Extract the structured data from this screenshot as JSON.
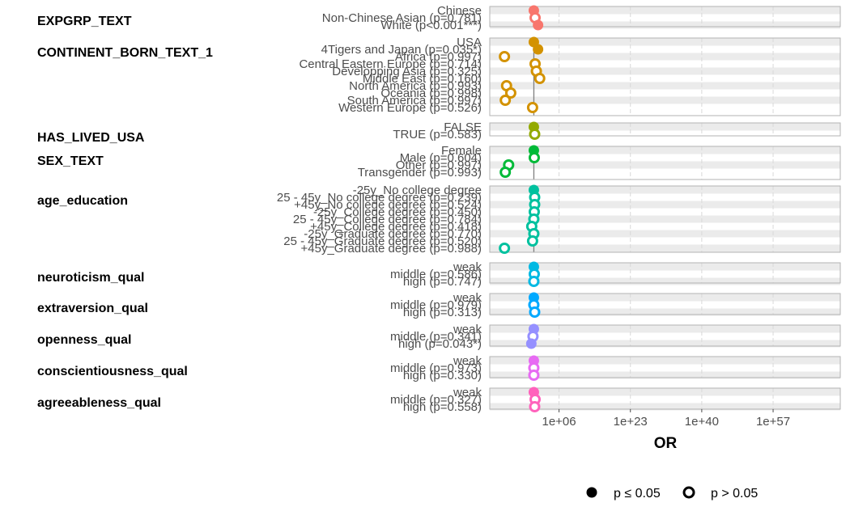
{
  "chart_data": {
    "type": "scatter",
    "subtype": "forest-plot",
    "xlabel": "OR",
    "x_scale": "log10",
    "xlim_log10": [
      -10.5,
      73
    ],
    "x_ticks": [
      {
        "label": "1e+06",
        "log10": 6
      },
      {
        "label": "1e+23",
        "log10": 23
      },
      {
        "label": "1e+40",
        "log10": 40
      },
      {
        "label": "1e+57",
        "log10": 57
      }
    ],
    "reference_line_log10": 0,
    "legend": {
      "position": "bottom",
      "items": [
        {
          "label": "p ≤ 0.05",
          "shape": "filled"
        },
        {
          "label": "p > 0.05",
          "shape": "open"
        }
      ]
    },
    "groups": [
      {
        "name": "EXPGRP_TEXT",
        "color": "#F8766D",
        "levels": [
          {
            "label": "Chinese",
            "log10_or": 0,
            "reference": true
          },
          {
            "label": "Non-Chinese Asian (p=0.781)",
            "log10_or": 0.3,
            "significant": false
          },
          {
            "label": "White (p<0.001***)",
            "log10_or": 1,
            "significant": true
          }
        ]
      },
      {
        "name": "CONTINENT_BORN_TEXT_1",
        "color": "#D39200",
        "levels": [
          {
            "label": "USA",
            "log10_or": 0,
            "reference": true
          },
          {
            "label": "4Tigers and Japan (p=0.035*)",
            "log10_or": 1,
            "significant": true
          },
          {
            "label": "Africa (p=0.997)",
            "log10_or": -7,
            "significant": false
          },
          {
            "label": "Central Eastern Europe (p=0.714)",
            "log10_or": 0.3,
            "significant": false
          },
          {
            "label": "Developping Asia (p=0.325)",
            "log10_or": 0.6,
            "significant": false
          },
          {
            "label": "Middle East (p=0.160)",
            "log10_or": 1.4,
            "significant": false
          },
          {
            "label": "North America (p=0.993)",
            "log10_or": -6.5,
            "significant": false
          },
          {
            "label": "Oceania (p=0.998)",
            "log10_or": -5.5,
            "significant": false
          },
          {
            "label": "South America (p=0.997)",
            "log10_or": -6.8,
            "significant": false
          },
          {
            "label": "Western Europe (p=0.526)",
            "log10_or": -0.3,
            "significant": false
          }
        ]
      },
      {
        "name": "HAS_LIVED_USA",
        "color": "#93AA00",
        "levels": [
          {
            "label": "FALSE",
            "log10_or": 0,
            "reference": true
          },
          {
            "label": "TRUE (p=0.583)",
            "log10_or": 0.2,
            "significant": false
          }
        ]
      },
      {
        "name": "SEX_TEXT",
        "color": "#00BA38",
        "levels": [
          {
            "label": "Female",
            "log10_or": 0,
            "reference": true
          },
          {
            "label": "Male (p=0.604)",
            "log10_or": 0.1,
            "significant": false
          },
          {
            "label": "Other (p=0.997)",
            "log10_or": -6,
            "significant": false
          },
          {
            "label": "Transgender (p=0.993)",
            "log10_or": -6.8,
            "significant": false
          }
        ]
      },
      {
        "name": "age_education",
        "color": "#00C19F",
        "levels": [
          {
            "label": "-25y_No college degree",
            "log10_or": 0,
            "reference": true
          },
          {
            "label": "25 - 45y_No college degree (p=0.239)",
            "log10_or": 0.2,
            "significant": false
          },
          {
            "label": "+45y_No college degree (p=0.524)",
            "log10_or": 0.2,
            "significant": false
          },
          {
            "label": "-25y_College degree (p=0.450)",
            "log10_or": 0.1,
            "significant": false
          },
          {
            "label": "25 - 45y_College degree (p=0.784)",
            "log10_or": 0,
            "significant": false
          },
          {
            "label": "+45y_College degree (p=0.418)",
            "log10_or": -0.5,
            "significant": false
          },
          {
            "label": "-25y_Graduate degree (p=0.770)",
            "log10_or": 0,
            "significant": false
          },
          {
            "label": "25 - 45y_Graduate degree (p=0.520)",
            "log10_or": -0.3,
            "significant": false
          },
          {
            "label": "+45y_Graduate degree (p=0.988)",
            "log10_or": -7,
            "significant": false
          }
        ]
      },
      {
        "name": "neuroticism_qual",
        "color": "#00B9E3",
        "levels": [
          {
            "label": "weak",
            "log10_or": 0,
            "reference": true
          },
          {
            "label": "middle (p=0.586)",
            "log10_or": 0.1,
            "significant": false
          },
          {
            "label": "high (p=0.747)",
            "log10_or": 0,
            "significant": false
          }
        ]
      },
      {
        "name": "extraversion_qual",
        "color": "#00A9FF",
        "levels": [
          {
            "label": "weak",
            "log10_or": 0,
            "reference": true
          },
          {
            "label": "middle (p=0.979)",
            "log10_or": 0,
            "significant": false
          },
          {
            "label": "high (p=0.313)",
            "log10_or": 0.2,
            "significant": false
          }
        ]
      },
      {
        "name": "openness_qual",
        "color": "#9590FF",
        "levels": [
          {
            "label": "weak",
            "log10_or": 0,
            "reference": true
          },
          {
            "label": "middle (p=0.341)",
            "log10_or": -0.2,
            "significant": false
          },
          {
            "label": "high (p=0.043*)",
            "log10_or": -0.6,
            "significant": true
          }
        ]
      },
      {
        "name": "conscientiousness_qual",
        "color": "#E76BF3",
        "levels": [
          {
            "label": "weak",
            "log10_or": 0,
            "reference": true
          },
          {
            "label": "middle (p=0.973)",
            "log10_or": 0,
            "significant": false
          },
          {
            "label": "high (p=0.330)",
            "log10_or": 0,
            "significant": false
          }
        ]
      },
      {
        "name": "agreeableness_qual",
        "color": "#FF62BC",
        "levels": [
          {
            "label": "weak",
            "log10_or": 0,
            "reference": true
          },
          {
            "label": "middle (p=0.327)",
            "log10_or": 0.3,
            "significant": false
          },
          {
            "label": "high (p=0.558)",
            "log10_or": 0.2,
            "significant": false
          }
        ]
      }
    ]
  }
}
